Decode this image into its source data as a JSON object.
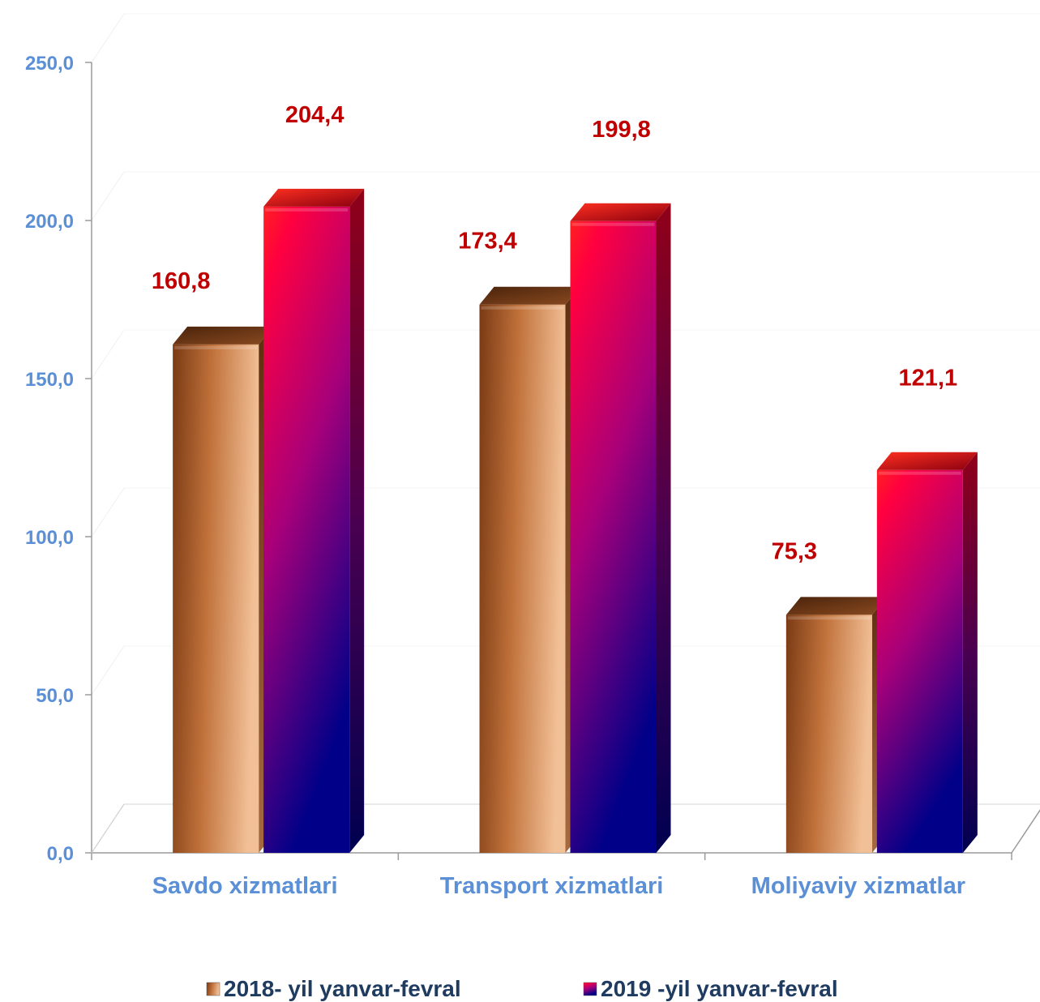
{
  "chart_data": {
    "type": "bar",
    "categories": [
      "Savdo xizmatlari",
      "Transport xizmatlari",
      "Moliyaviy xizmatlar"
    ],
    "series": [
      {
        "name": "2018- yil yanvar-fevral",
        "values": [
          160.8,
          173.4,
          75.3
        ],
        "value_labels": [
          "160,8",
          "173,4",
          "75,3"
        ]
      },
      {
        "name": "2019 -yil yanvar-fevral",
        "values": [
          204.4,
          199.8,
          121.1
        ],
        "value_labels": [
          "204,4",
          "199,8",
          "121,1"
        ]
      }
    ],
    "y_ticks": [
      "0,0",
      "50,0",
      "100,0",
      "150,0",
      "200,0",
      "250,0"
    ],
    "ylim": [
      0,
      250
    ],
    "grid": true,
    "legend_position": "bottom",
    "colors": {
      "series_2018": [
        "#6e3512",
        "#b5652f",
        "#e2a877"
      ],
      "series_2019": [
        "#ff1a1a",
        "#b0006e",
        "#000080"
      ],
      "value_label": "#c00000",
      "axis_text": "#5b8fd6",
      "legend_text": "#1f3b60"
    }
  }
}
